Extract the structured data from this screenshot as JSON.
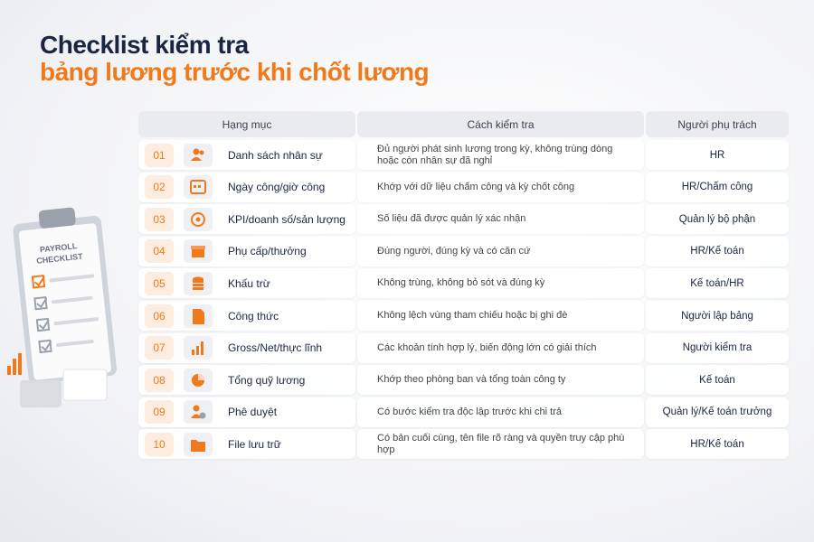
{
  "header": {
    "title_line1": "Checklist kiểm tra",
    "title_line2": "bảng lương trước khi chốt lương"
  },
  "illustration": {
    "label_lines": [
      "PAYROLL",
      "CHECKLIST"
    ]
  },
  "table": {
    "columns": [
      "Hạng mục",
      "Cách kiểm tra",
      "Người phụ trách"
    ],
    "rows": [
      {
        "no": "01",
        "item": "Danh sách nhân sự",
        "check": [
          "Đủ người phát sinh lương trong kỳ, không trùng dòng",
          "hoặc còn nhân sự đã nghỉ"
        ],
        "owner": "HR"
      },
      {
        "no": "02",
        "item": "Ngày công/giờ công",
        "check": [
          "Khớp với dữ liệu chấm công và kỳ chốt công"
        ],
        "owner": "HR/Chấm công"
      },
      {
        "no": "03",
        "item": "KPI/doanh số/sản lượng",
        "check": [
          "Số liệu đã được quản lý xác nhận"
        ],
        "owner": "Quản lý bộ phận"
      },
      {
        "no": "04",
        "item": "Phụ cấp/thưởng",
        "check": [
          "Đúng người, đúng kỳ và có căn cứ"
        ],
        "owner": "HR/Kế toán"
      },
      {
        "no": "05",
        "item": "Khấu trừ",
        "check": [
          "Không trùng, không bỏ sót và đúng kỳ"
        ],
        "owner": "Kế toán/HR"
      },
      {
        "no": "06",
        "item": "Công thức",
        "check": [
          "Không lệch vùng tham chiếu hoặc bị ghi đè"
        ],
        "owner": "Người lập bảng"
      },
      {
        "no": "07",
        "item": "Gross/Net/thực lĩnh",
        "check": [
          "Các khoản tính hợp lý, biến động lớn có giải thích"
        ],
        "owner": "Người kiểm tra"
      },
      {
        "no": "08",
        "item": "Tổng quỹ lương",
        "check": [
          "Khớp theo phòng ban và tổng toàn công ty"
        ],
        "owner": "Kế toán"
      },
      {
        "no": "09",
        "item": "Phê duyệt",
        "check": [
          "Có bước kiểm tra độc lập trước khi chi trả"
        ],
        "owner": "Quản lý/Kế toán trưởng"
      },
      {
        "no": "10",
        "item": "File lưu trữ",
        "check": [
          "Có bản cuối cùng, tên file rõ ràng và quyền truy cập phù hợp"
        ],
        "owner": "HR/Kế toán"
      }
    ]
  }
}
